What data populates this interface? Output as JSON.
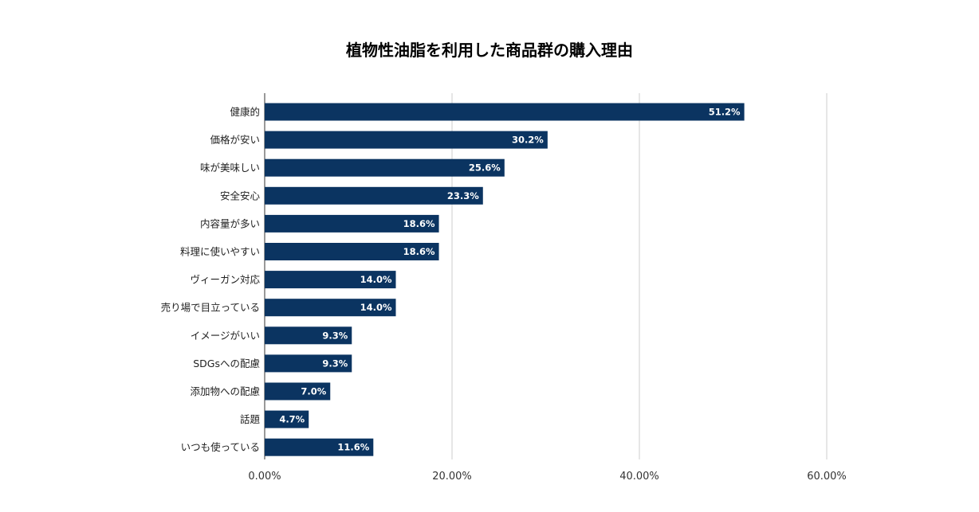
{
  "chart_data": {
    "type": "bar",
    "orientation": "horizontal",
    "title": "植物性油脂を利用した商品群の購入理由",
    "categories": [
      "健康的",
      "価格が安い",
      "味が美味しい",
      "安全安心",
      "内容量が多い",
      "料理に使いやすい",
      "ヴィーガン対応",
      "売り場で目立っている",
      "イメージがいい",
      "SDGsへの配慮",
      "添加物への配慮",
      "話題",
      "いつも使っている"
    ],
    "values": [
      51.2,
      30.2,
      25.6,
      23.3,
      18.6,
      18.6,
      14.0,
      14.0,
      9.3,
      9.3,
      7.0,
      4.7,
      11.6
    ],
    "value_labels": [
      "51.2%",
      "30.2%",
      "25.6%",
      "23.3%",
      "18.6%",
      "18.6%",
      "14.0%",
      "14.0%",
      "9.3%",
      "9.3%",
      "7.0%",
      "4.7%",
      "11.6%"
    ],
    "xlim": [
      0,
      60
    ],
    "x_ticks": [
      0,
      20,
      40,
      60
    ],
    "x_tick_labels": [
      "0.00%",
      "20.00%",
      "40.00%",
      "60.00%"
    ],
    "grid": true,
    "legend": "none",
    "bar_color": "#0b3461",
    "value_label_color": "#ffffff",
    "grid_color": "#cccccc"
  }
}
